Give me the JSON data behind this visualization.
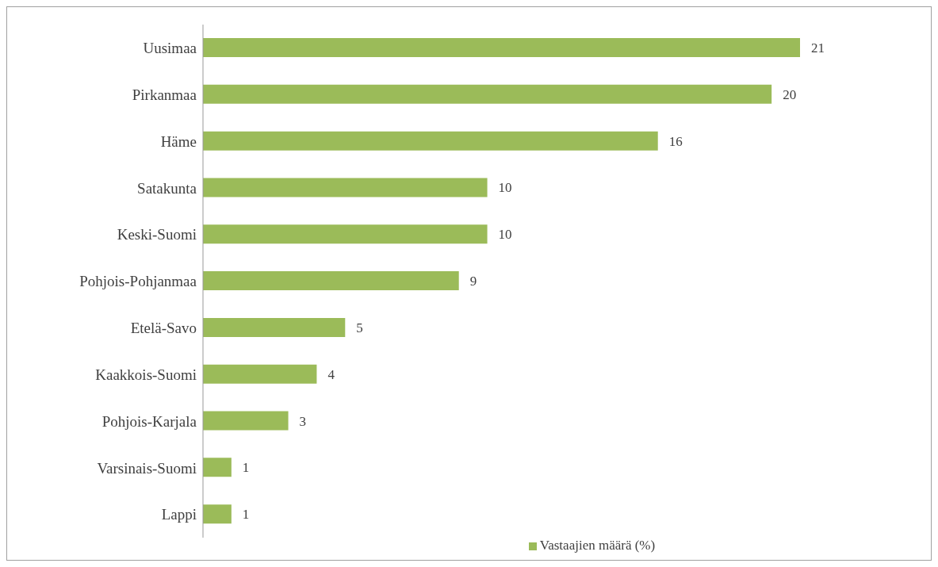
{
  "chart_data": {
    "type": "bar",
    "orientation": "horizontal",
    "categories": [
      "Uusimaa",
      "Pirkanmaa",
      "Häme",
      "Satakunta",
      "Keski-Suomi",
      "Pohjois-Pohjanmaa",
      "Etelä-Savo",
      "Kaakkois-Suomi",
      "Pohjois-Karjala",
      "Varsinais-Suomi",
      "Lappi"
    ],
    "series": [
      {
        "name": "Vastaajien määrä (%)",
        "color": "#9bbb59",
        "values": [
          21,
          20,
          16,
          10,
          10,
          9,
          5,
          4,
          3,
          1,
          1
        ]
      }
    ],
    "data_labels": true,
    "legend": "bottom"
  }
}
